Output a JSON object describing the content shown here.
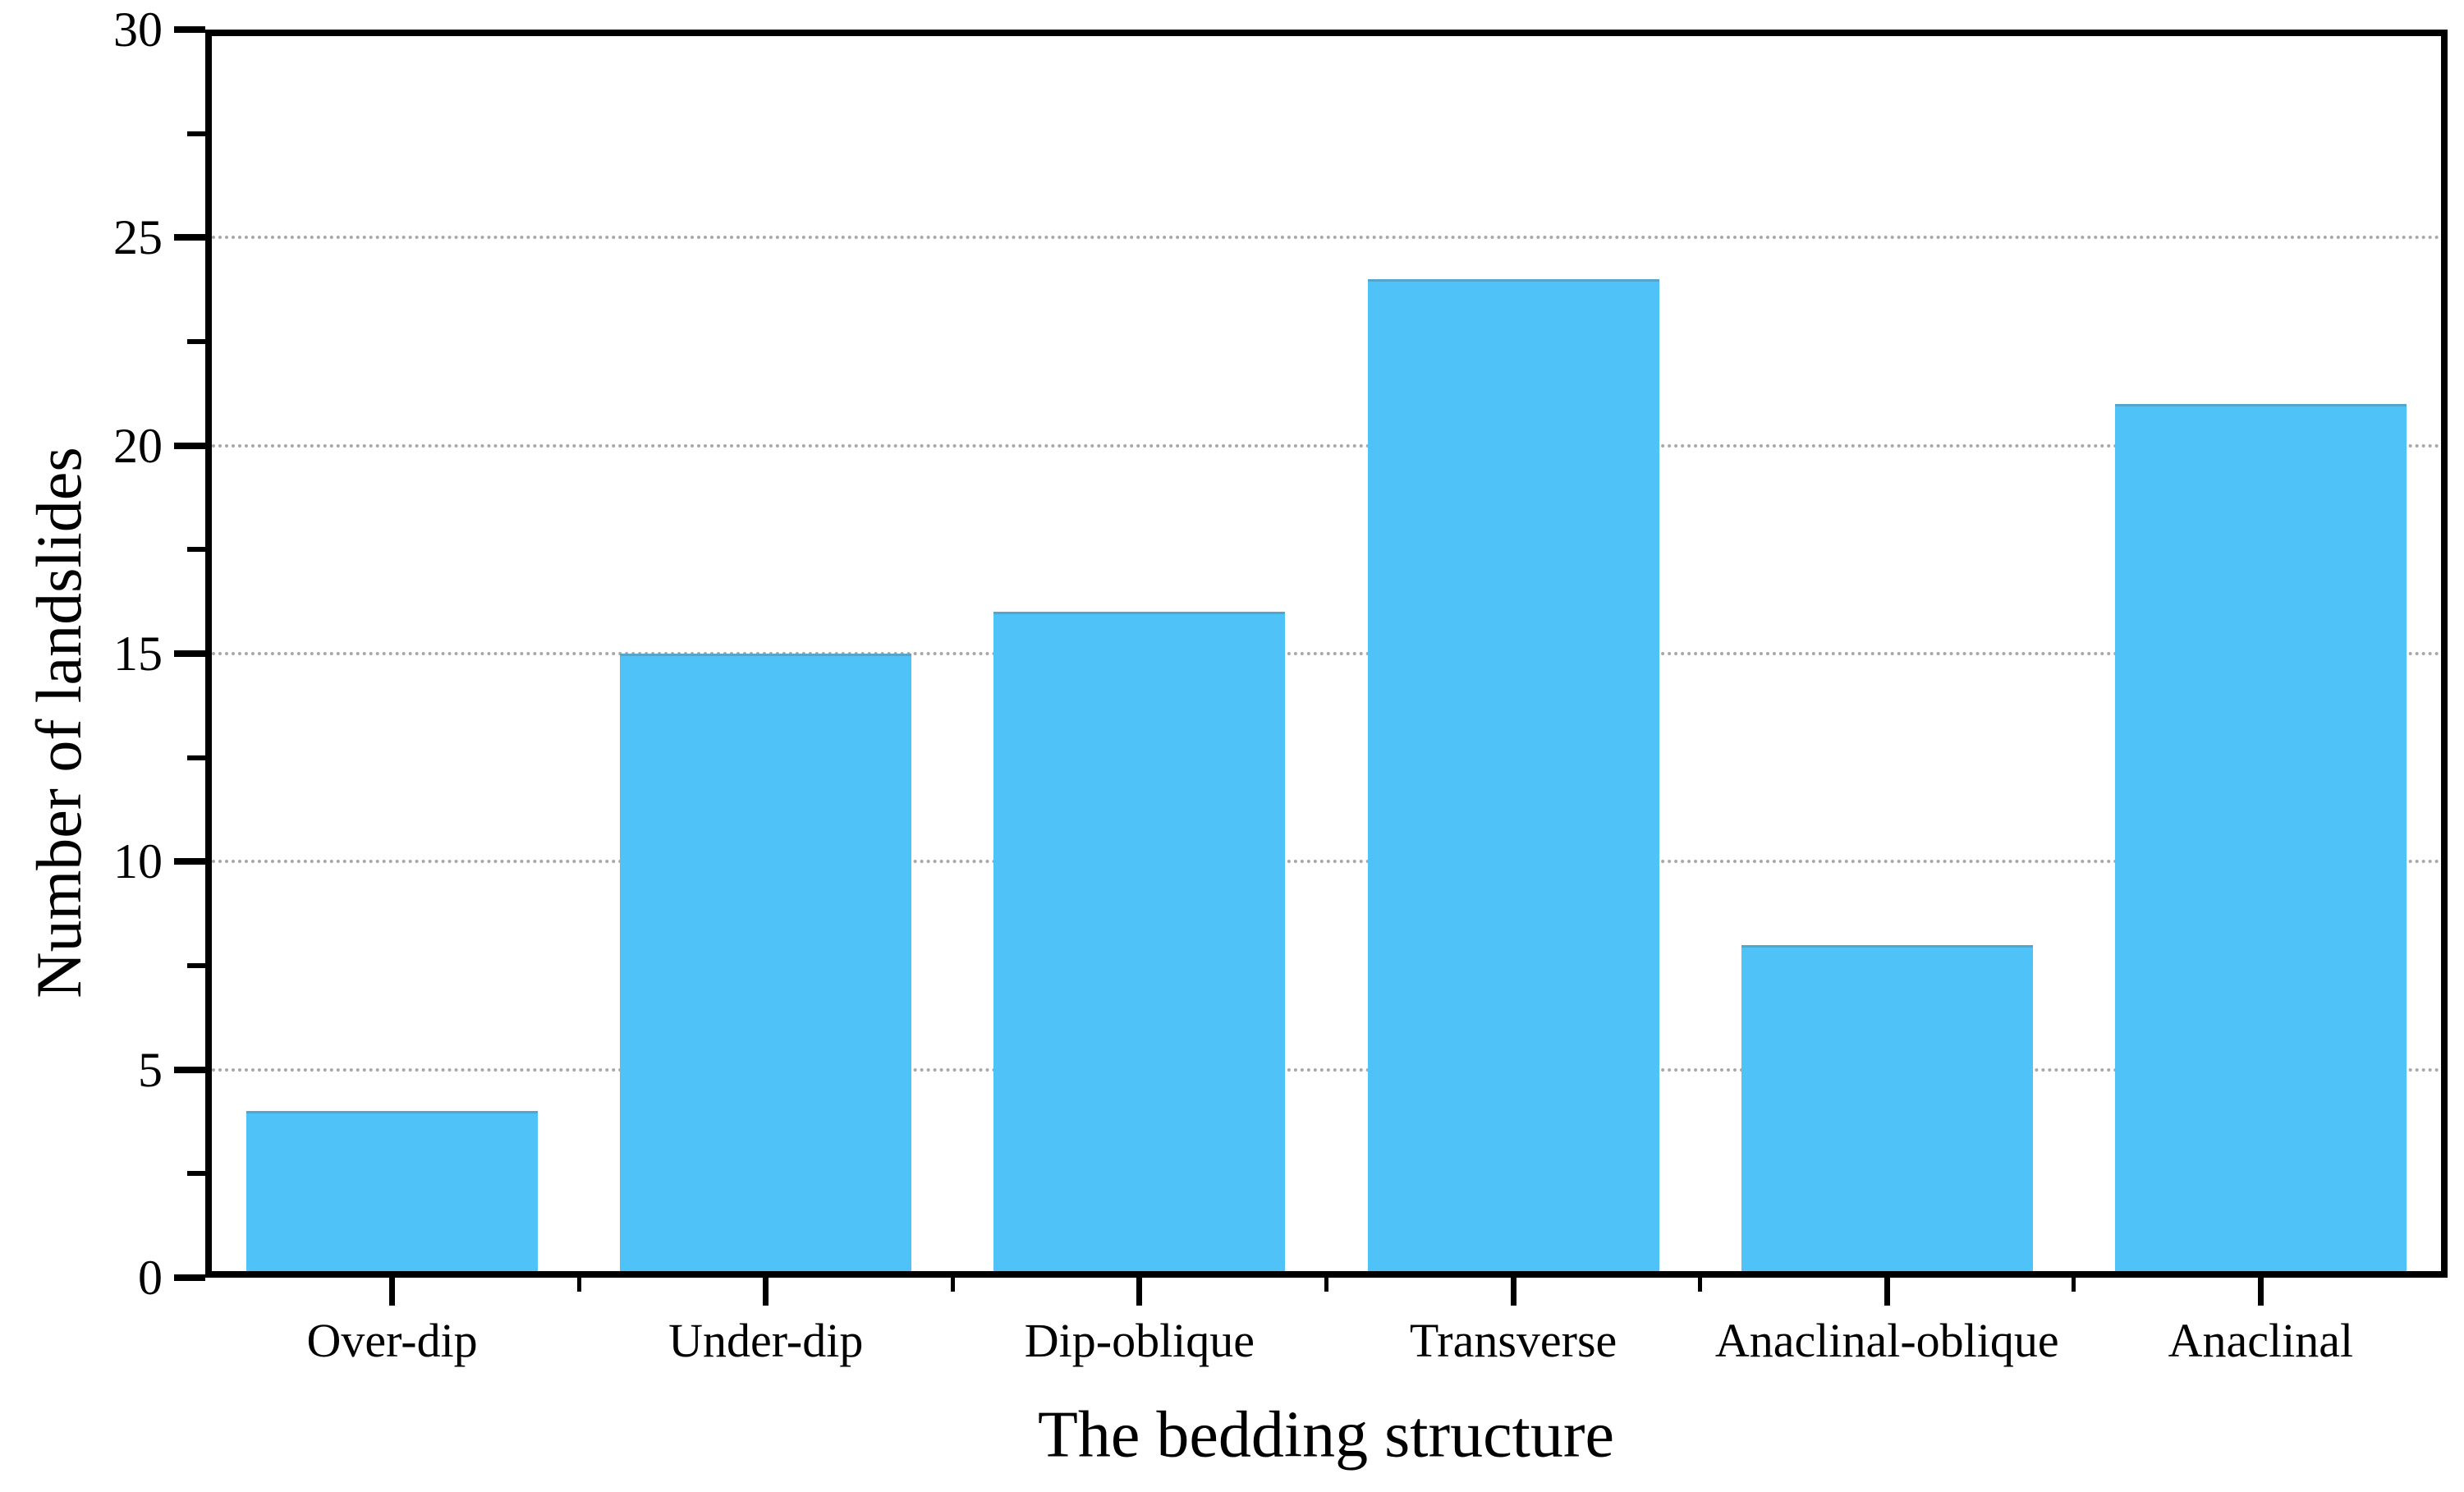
{
  "chart_data": {
    "type": "bar",
    "categories": [
      "Over-dip",
      "Under-dip",
      "Dip-oblique",
      "Transverse",
      "Anaclinal-oblique",
      "Anaclinal"
    ],
    "values": [
      4,
      15,
      16,
      24,
      8,
      21
    ],
    "title": "",
    "xlabel": "The bedding structure",
    "ylabel": "Number of landslides",
    "ylim": [
      0,
      30
    ],
    "yticks_major": [
      0,
      5,
      10,
      15,
      20,
      25,
      30
    ],
    "yticks_minor": [
      2.5,
      7.5,
      12.5,
      17.5,
      22.5,
      27.5
    ],
    "gridlines_at": [
      5,
      10,
      15,
      20,
      25
    ],
    "grid_style": "dotted",
    "grid_on": true,
    "legend_position": "none",
    "bar_color": "#4FC3F7",
    "axis_color": "#000000",
    "gridline_color": "#a8a8a8",
    "background_color": "#ffffff"
  }
}
